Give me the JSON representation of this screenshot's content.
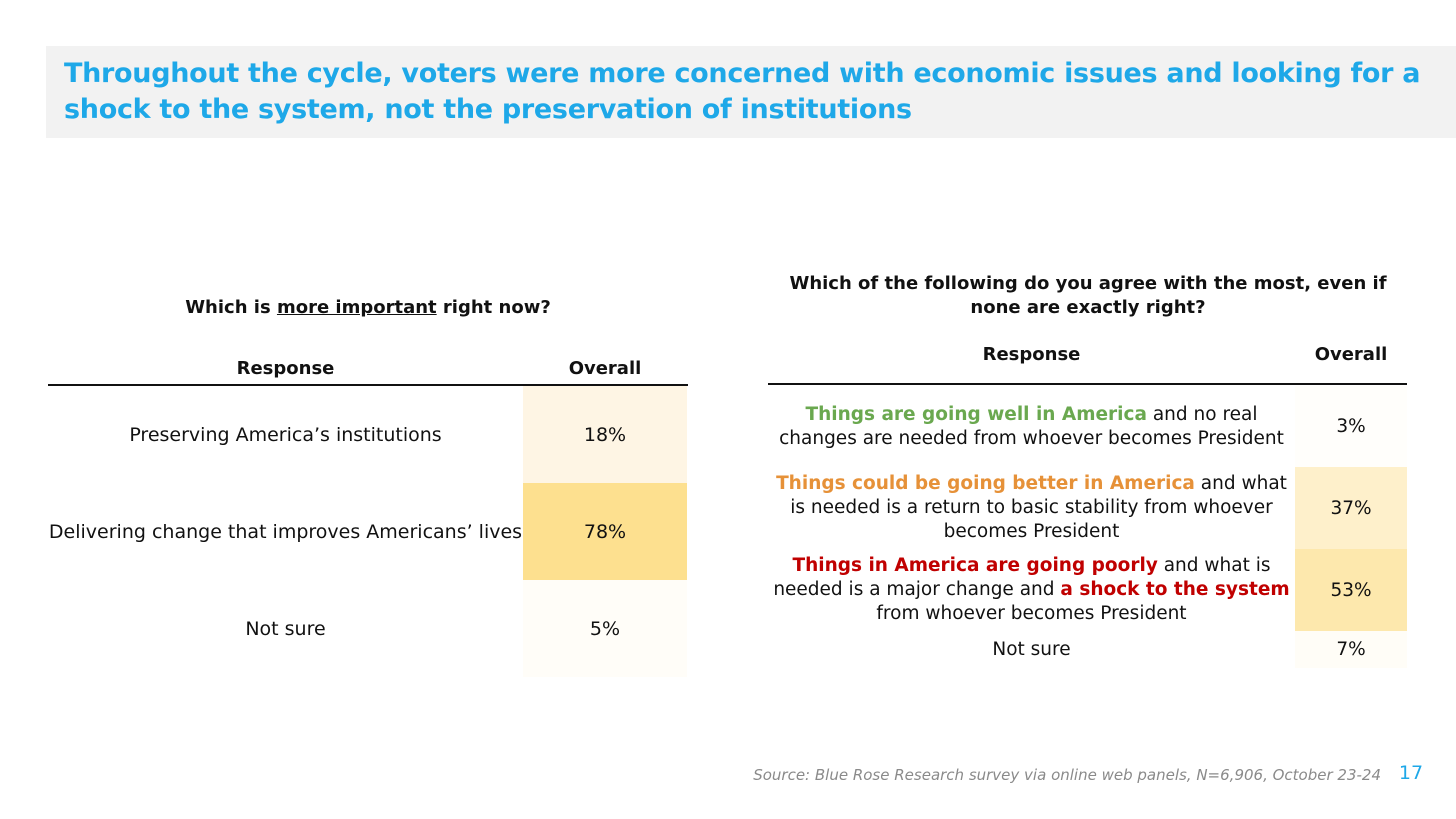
{
  "title": "Throughout the cycle, voters were more concerned with economic issues and looking for a shock to the system, not the preservation of institutions",
  "left_table": {
    "question_prefix": "Which is ",
    "question_underlined": "more important",
    "question_suffix": " right now?",
    "header_response": "Response",
    "header_overall": "Overall",
    "rows": [
      {
        "label": "Preserving America’s institutions",
        "value": "18%",
        "fill_pct": 18,
        "color": "#fef5e4"
      },
      {
        "label": "Delivering change that improves Americans’ lives",
        "value": "78%",
        "fill_pct": 78,
        "color": "#fde08f"
      },
      {
        "label": "Not sure",
        "value": "5%",
        "fill_pct": 5,
        "color": "#fffdf8"
      }
    ]
  },
  "right_table": {
    "question": "Which of the following do you agree with the most, even if none are exactly right?",
    "header_response": "Response",
    "header_overall": "Overall",
    "rows": [
      {
        "highlight_1": "Things are going well in America",
        "text_1": " and no real changes are needed from whoever becomes President",
        "highlight_2": "",
        "text_2": "",
        "highlight_color": "#6aa84f",
        "value": "3%",
        "fill_pct": 3,
        "color": "#fffefb"
      },
      {
        "highlight_1": "Things could be going better in America",
        "text_1": " and what is needed is a return to basic stability from whoever becomes President",
        "highlight_2": "",
        "text_2": "",
        "highlight_color": "#e69138",
        "value": "37%",
        "fill_pct": 37,
        "color": "#fef0cb"
      },
      {
        "highlight_1": "Things in America are going poorly",
        "text_1": " and what is needed is a major change and ",
        "highlight_2": "a shock to the system",
        "text_2": " from whoever becomes President",
        "highlight_color": "#c00000",
        "value": "53%",
        "fill_pct": 53,
        "color": "#fde8ad"
      },
      {
        "highlight_1": "",
        "text_1": "Not sure",
        "highlight_2": "",
        "text_2": "",
        "highlight_color": "",
        "value": "7%",
        "fill_pct": 7,
        "color": "#fffdf7"
      }
    ]
  },
  "source": "Source: Blue Rose Research survey via online web panels, N=6,906, October 23-24",
  "page_number": "17",
  "colors": {
    "title": "#1ea8e8",
    "title_band": "#f2f2f2",
    "source": "#8a8a8a"
  }
}
